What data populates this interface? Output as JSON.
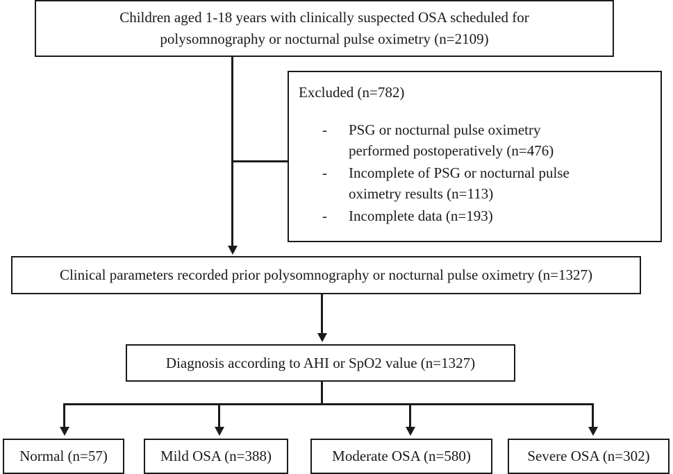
{
  "top_box": {
    "line1": "Children aged 1-18 years with clinically suspected OSA scheduled for",
    "line2": "polysomnography or nocturnal pulse oximetry (n=2109)"
  },
  "excluded": {
    "title": "Excluded (n=782)",
    "items": [
      {
        "line1": "PSG or nocturnal pulse oximetry",
        "line2": "performed postoperatively (n=476)"
      },
      {
        "line1": "Incomplete of PSG or nocturnal pulse",
        "line2": "oximetry results (n=113)"
      },
      {
        "line1": "Incomplete data (n=193)",
        "line2": ""
      }
    ],
    "bullet": "-"
  },
  "clinical_box": {
    "text": "Clinical parameters recorded prior polysomnography or nocturnal pulse oximetry (n=1327)"
  },
  "diagnosis_box": {
    "text": "Diagnosis according to AHI or SpO2 value (n=1327)"
  },
  "outcomes": [
    {
      "label": "Normal (n=57)"
    },
    {
      "label": "Mild OSA (n=388)"
    },
    {
      "label": "Moderate OSA (n=580)"
    },
    {
      "label": "Severe OSA (n=302)"
    }
  ]
}
